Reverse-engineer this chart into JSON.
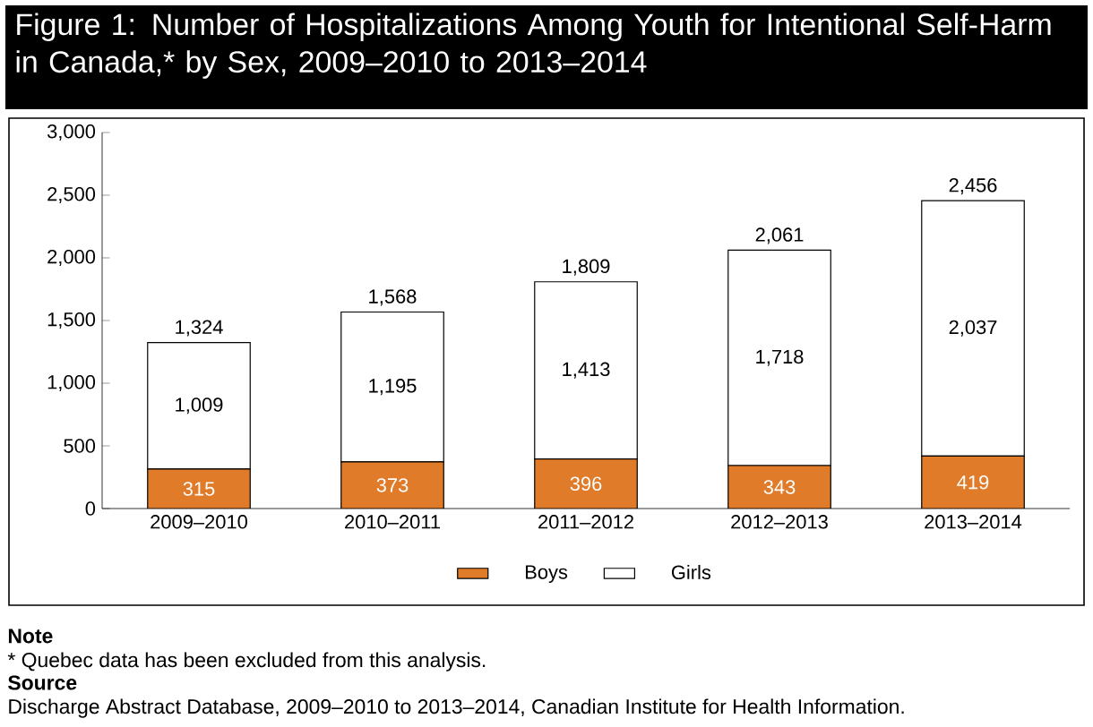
{
  "chart_data": {
    "type": "bar",
    "stacked": true,
    "title": "Figure 1: Number of Hospitalizations Among Youth for Intentional Self-Harm in Canada,* by Sex, 2009–2010 to 2013–2014",
    "categories": [
      "2009–2010",
      "2010–2011",
      "2011–2012",
      "2012–2013",
      "2013–2014"
    ],
    "series": [
      {
        "name": "Boys",
        "color": "#e07b2a",
        "values": [
          315,
          373,
          396,
          343,
          419
        ],
        "value_labels": [
          "315",
          "373",
          "396",
          "343",
          "419"
        ]
      },
      {
        "name": "Girls",
        "color": "#ffffff",
        "values": [
          1009,
          1195,
          1413,
          1718,
          2037
        ],
        "value_labels": [
          "1,009",
          "1,195",
          "1,413",
          "1,718",
          "2,037"
        ]
      }
    ],
    "totals": [
      "1,324",
      "1,568",
      "1,809",
      "2,061",
      "2,456"
    ],
    "ylim": [
      0,
      3000
    ],
    "yticks": [
      0,
      500,
      {
        "value": 1000,
        "label": "1,000"
      },
      {
        "value": 1500,
        "label": "1,500"
      },
      {
        "value": 2000,
        "label": "2,000"
      },
      {
        "value": 2500,
        "label": "2,500"
      },
      {
        "value": 3000,
        "label": "3,000"
      }
    ],
    "grid": false,
    "legend": "bottom",
    "annotations": [
      "Note",
      "*  Quebec data has been excluded from this analysis.",
      "Source",
      "Discharge Abstract Database, 2009–2010 to 2013–2014, Canadian Institute for Health Information."
    ]
  }
}
